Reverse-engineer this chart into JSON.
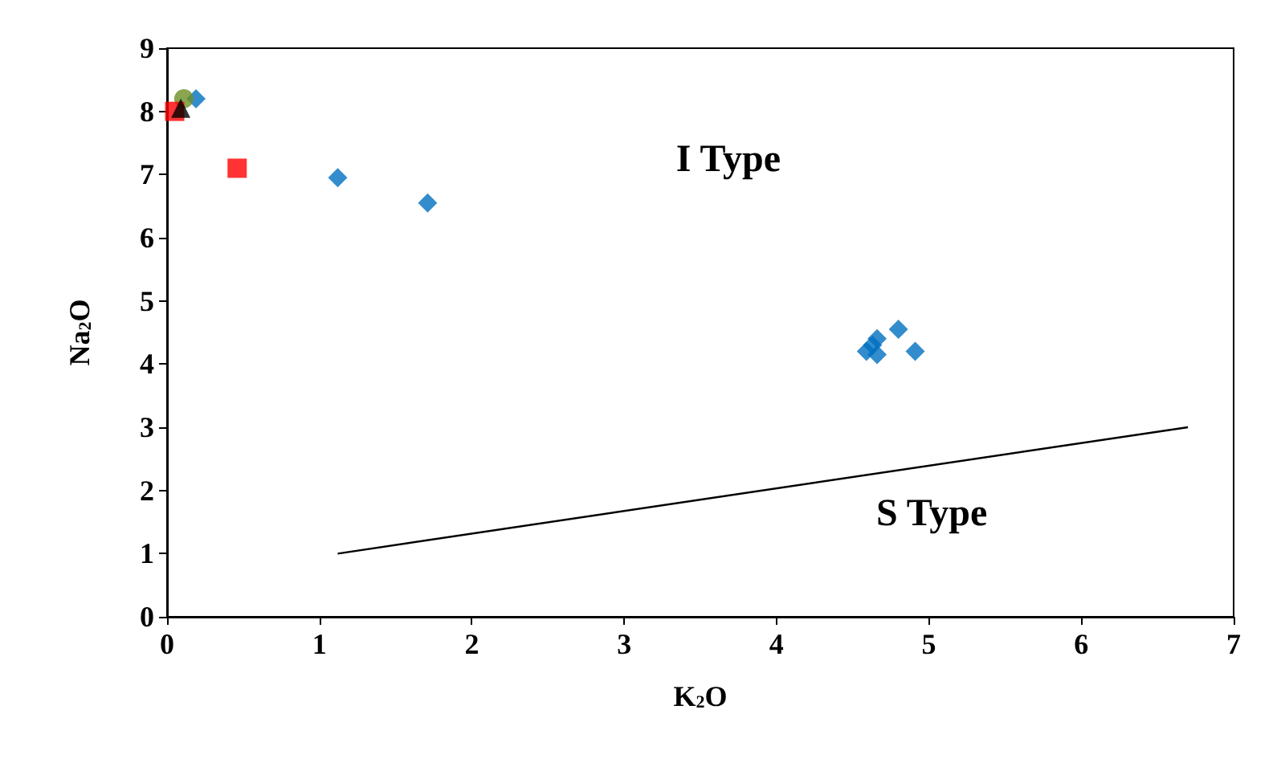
{
  "chart_data": {
    "type": "scatter",
    "xlabel": "K$_{2}$O",
    "ylabel": "Na$_{2}$O",
    "xlim": [
      0,
      7
    ],
    "ylim": [
      0,
      9
    ],
    "xticks": [
      0,
      1,
      2,
      3,
      4,
      5,
      6,
      7
    ],
    "yticks": [
      0,
      1,
      2,
      3,
      4,
      5,
      6,
      7,
      8,
      9
    ],
    "grid": false,
    "annotations": [
      "I Type",
      "S Type"
    ],
    "series": [
      {
        "color": "#0070c0",
        "marker": "diamond",
        "x": [
          0.19,
          1.12,
          1.71,
          4.59,
          4.66,
          4.66,
          4.8,
          4.91,
          4.63
        ],
        "values": [
          8.2,
          6.95,
          6.55,
          4.2,
          4.15,
          4.4,
          4.55,
          4.2,
          4.3
        ]
      },
      {
        "color": "#6b8e23",
        "marker": "circle",
        "x": [
          0.11
        ],
        "values": [
          8.2
        ]
      },
      {
        "color": "#ff0000",
        "marker": "square",
        "x": [
          0.05,
          0.46
        ],
        "values": [
          8.0,
          7.1
        ]
      },
      {
        "color": "#000000",
        "marker": "triangle",
        "x": [
          0.09
        ],
        "values": [
          8.05
        ]
      },
      {
        "type": "line",
        "color": "#000000",
        "marker": "none",
        "line_style": "solid",
        "x": [
          1.12,
          6.7
        ],
        "values": [
          1.0,
          3.0
        ]
      }
    ]
  }
}
